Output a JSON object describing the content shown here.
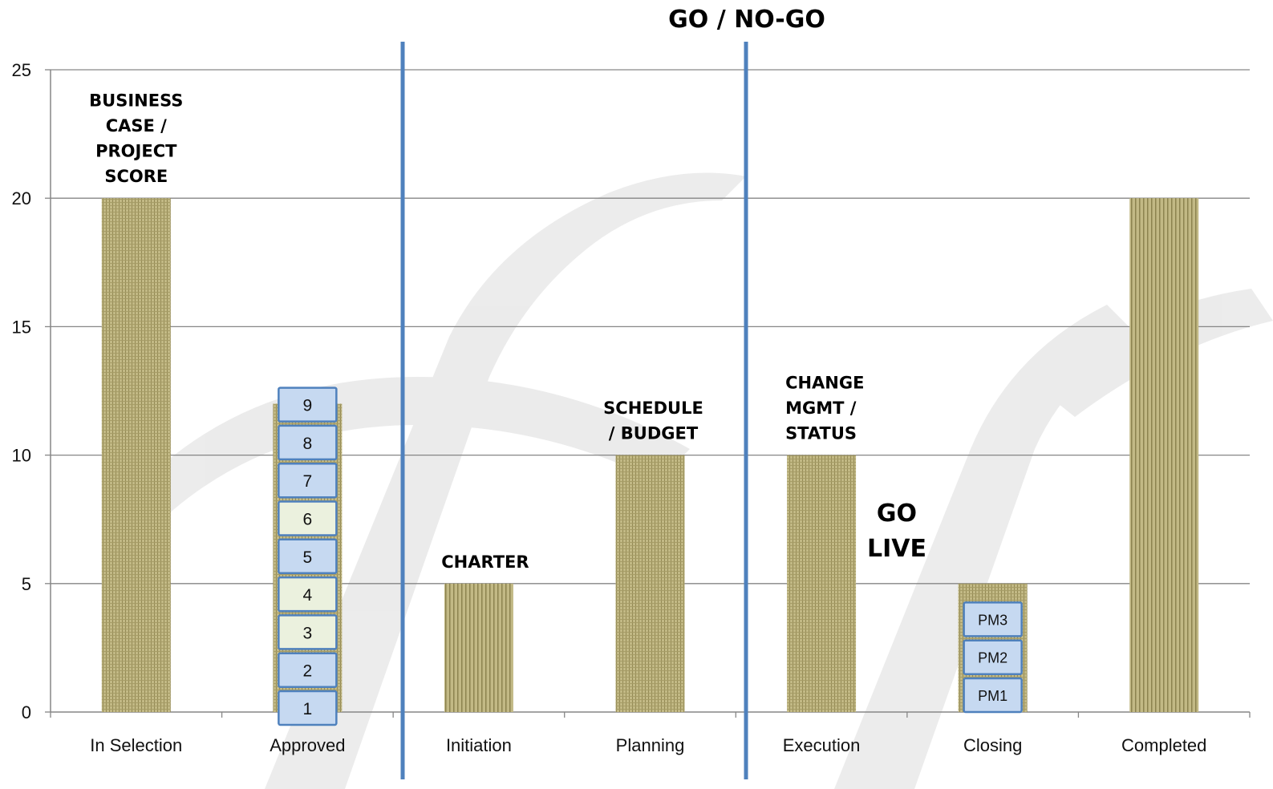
{
  "chart_data": {
    "type": "bar",
    "title": "GO / NO-GO",
    "categories": [
      "In Selection",
      "Approved",
      "Initiation",
      "Planning",
      "Execution",
      "Closing",
      "Completed"
    ],
    "values": [
      20,
      12,
      5,
      10,
      10,
      5,
      20
    ],
    "ylim": [
      0,
      25
    ],
    "yticks": [
      "0",
      "5",
      "10",
      "15",
      "20",
      "25"
    ],
    "grid": true,
    "colors": {
      "bar": "#b9b07a",
      "bar_stripe": "#948a55",
      "separator": "#4f81bd",
      "box_blue": "#c6d9f1",
      "box_green": "#ebf1de",
      "box_border": "#4f81bd",
      "grid": "#868686"
    },
    "annotations": [
      {
        "category": "In Selection",
        "lines": [
          "BUSINESS",
          "CASE /",
          "PROJECT",
          "SCORE"
        ]
      },
      {
        "category": "Initiation",
        "lines": [
          "CHARTER"
        ]
      },
      {
        "category": "Planning",
        "lines": [
          "SCHEDULE",
          "/ BUDGET"
        ]
      },
      {
        "category": "Execution",
        "lines": [
          "CHANGE",
          "MGMT /",
          "STATUS"
        ]
      }
    ],
    "go_live": [
      "GO",
      "LIVE"
    ],
    "approved_boxes": [
      {
        "label": "1",
        "color": "blue"
      },
      {
        "label": "2",
        "color": "blue"
      },
      {
        "label": "3",
        "color": "green"
      },
      {
        "label": "4",
        "color": "green"
      },
      {
        "label": "5",
        "color": "blue"
      },
      {
        "label": "6",
        "color": "green"
      },
      {
        "label": "7",
        "color": "blue"
      },
      {
        "label": "8",
        "color": "blue"
      },
      {
        "label": "9",
        "color": "blue"
      }
    ],
    "closing_boxes": [
      {
        "label": "PM1"
      },
      {
        "label": "PM2"
      },
      {
        "label": "PM3"
      }
    ]
  }
}
